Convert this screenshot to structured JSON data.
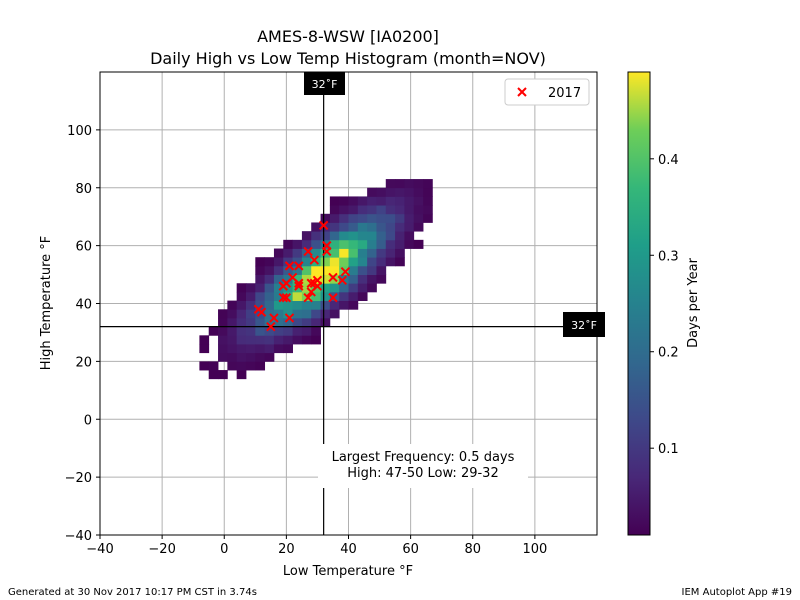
{
  "chart_data": {
    "type": "heatmap",
    "title": "AMES-8-WSW [IA0200]",
    "subtitle": "Daily High vs Low Temp Histogram (month=NOV)",
    "xlabel": "Low Temperature °F",
    "ylabel": "High Temperature °F",
    "xlim": [
      -40,
      120
    ],
    "ylim": [
      -40,
      120
    ],
    "x_ticks": [
      -40,
      -20,
      0,
      20,
      40,
      60,
      80,
      100
    ],
    "y_ticks": [
      -40,
      -20,
      0,
      20,
      40,
      60,
      80,
      100
    ],
    "grid": true,
    "freeze_line_label": "32˚F",
    "freeze_value": 32,
    "bin_size": 3,
    "colorbar": {
      "label": "Days per Year",
      "colormap": "viridis",
      "range": [
        0.01,
        0.49
      ],
      "ticks": [
        0.1,
        0.2,
        0.3,
        0.4
      ]
    },
    "histogram_core": {
      "center_low": 30,
      "center_high": 49,
      "peak": 0.49
    },
    "legend": {
      "placement": "top-right",
      "entries": [
        "2017"
      ]
    },
    "series": [
      {
        "name": "2017",
        "marker": "x",
        "color": "#ff0000",
        "points": [
          [
            11,
            38
          ],
          [
            12,
            37
          ],
          [
            15,
            32
          ],
          [
            16,
            35
          ],
          [
            19,
            42
          ],
          [
            19,
            46
          ],
          [
            20,
            47
          ],
          [
            20,
            42
          ],
          [
            21,
            35
          ],
          [
            21,
            53
          ],
          [
            22,
            49
          ],
          [
            24,
            46
          ],
          [
            24,
            47
          ],
          [
            24,
            53
          ],
          [
            27,
            42
          ],
          [
            27,
            58
          ],
          [
            28,
            44
          ],
          [
            28,
            47
          ],
          [
            29,
            55
          ],
          [
            29,
            47
          ],
          [
            30,
            48
          ],
          [
            30,
            46
          ],
          [
            32,
            67
          ],
          [
            33,
            58
          ],
          [
            33,
            60
          ],
          [
            35,
            49
          ],
          [
            35,
            42
          ],
          [
            38,
            48
          ],
          [
            39,
            51
          ]
        ]
      }
    ],
    "annotation": {
      "line1": "Largest Frequency: 0.5 days",
      "line2": "High: 47-50 Low: 29-32"
    }
  },
  "footer": {
    "left": "Generated at 30 Nov 2017 10:17 PM CST in 3.74s",
    "right": "IEM Autoplot App #19"
  }
}
